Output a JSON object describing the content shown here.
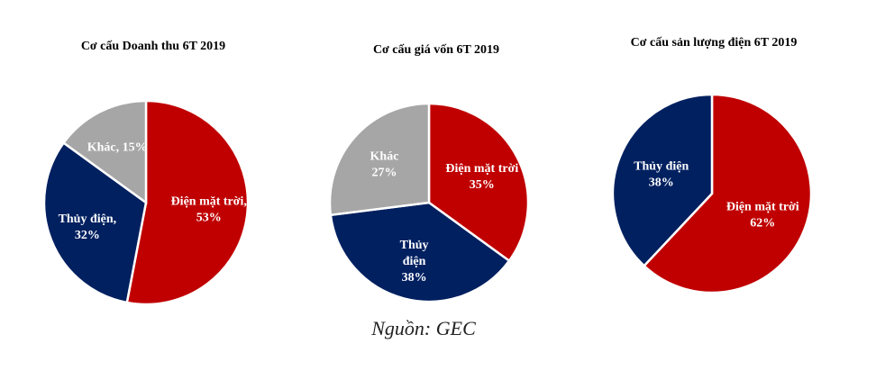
{
  "chart_data": [
    {
      "type": "pie",
      "title": "Cơ cấu Doanh thu 6T 2019",
      "slices": [
        {
          "name": "Điện mặt trời",
          "value": 53,
          "label_lines": [
            "Điện mặt trời,",
            "53%"
          ],
          "color": "#C00000"
        },
        {
          "name": "Thủy điện",
          "value": 32,
          "label_lines": [
            "Thủy điện,",
            "32%"
          ],
          "color": "#002060"
        },
        {
          "name": "Khác",
          "value": 15,
          "label_lines": [
            "Khác, 15%"
          ],
          "color": "#A6A6A6"
        }
      ]
    },
    {
      "type": "pie",
      "title": "Cơ cấu giá vốn 6T 2019",
      "slices": [
        {
          "name": "Điện mặt trời",
          "value": 35,
          "label_lines": [
            "Điện mặt trời",
            "35%"
          ],
          "color": "#C00000"
        },
        {
          "name": "Thủy điện",
          "value": 38,
          "label_lines": [
            "Thủy",
            "điện",
            "38%"
          ],
          "color": "#002060"
        },
        {
          "name": "Khác",
          "value": 27,
          "label_lines": [
            "Khác",
            "27%"
          ],
          "color": "#A6A6A6"
        }
      ]
    },
    {
      "type": "pie",
      "title": "Cơ cấu sản lượng điện 6T 2019",
      "slices": [
        {
          "name": "Điện mặt trời",
          "value": 62,
          "label_lines": [
            "Điện mặt trời",
            "62%"
          ],
          "color": "#C00000"
        },
        {
          "name": "Thủy điện",
          "value": 38,
          "label_lines": [
            "Thủy điện",
            "38%"
          ],
          "color": "#002060"
        }
      ]
    }
  ],
  "source": "Nguồn: GEC"
}
